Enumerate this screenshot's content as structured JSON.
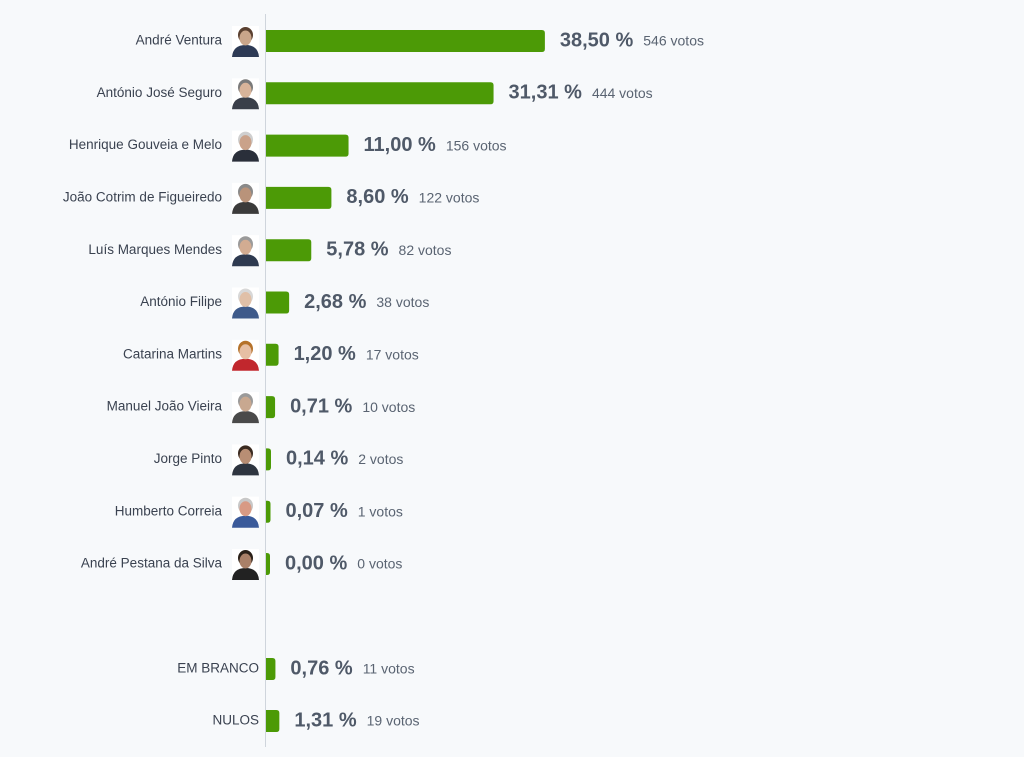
{
  "chart_data": [
    {
      "type": "bar",
      "orientation": "horizontal",
      "color": "#4c9a06",
      "avatars": true,
      "categories": [
        "André Ventura",
        "António José Seguro",
        "Henrique Gouveia e Melo",
        "João Cotrim de Figueiredo",
        "Luís Marques Mendes",
        "António Filipe",
        "Catarina Martins",
        "Manuel João Vieira",
        "Jorge Pinto",
        "Humberto Correia",
        "André Pestana da Silva"
      ],
      "values": [
        38.5,
        31.31,
        11.0,
        8.6,
        5.78,
        2.68,
        1.2,
        0.71,
        0.14,
        0.07,
        0.0
      ],
      "value_labels": [
        "38,50 %",
        "31,31 %",
        "11,00 %",
        "8,60 %",
        "5,78 %",
        "2,68 %",
        "1,20 %",
        "0,71 %",
        "0,14 %",
        "0,07 %",
        "0,00 %"
      ],
      "votes": [
        546,
        444,
        156,
        122,
        82,
        38,
        17,
        10,
        2,
        1,
        0
      ],
      "vote_labels": [
        "546 votos",
        "444 votos",
        "156 votos",
        "122 votos",
        "82 votos",
        "38 votos",
        "17 votos",
        "10 votos",
        "2 votos",
        "1 votos",
        "0 votos"
      ]
    },
    {
      "type": "bar",
      "orientation": "horizontal",
      "color": "#4c9a06",
      "avatars": false,
      "categories": [
        "EM BRANCO",
        "NULOS"
      ],
      "values": [
        0.76,
        1.31
      ],
      "value_labels": [
        "0,76 %",
        "1,31 %"
      ],
      "votes": [
        11,
        19
      ],
      "vote_labels": [
        "11 votos",
        "19 votos"
      ]
    }
  ]
}
